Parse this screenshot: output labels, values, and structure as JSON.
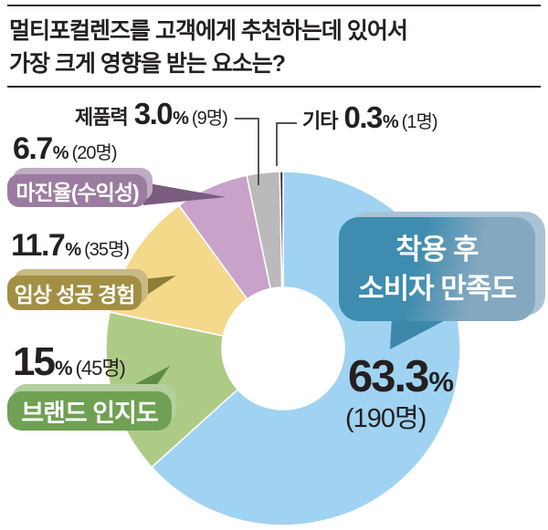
{
  "page": {
    "title_line1": "멀티포컬렌즈를 고객에게 추천하는데 있어서",
    "title_line2": "가장 크게 영향을 받는 요소는?"
  },
  "chart_data": {
    "type": "pie",
    "donut": true,
    "title": "멀티포컬렌즈를 고객에게 추천하는데 있어서 가장 크게 영향을 받는 요소는?",
    "start_angle_deg": 0,
    "direction": "clockwise",
    "unit": "%",
    "segments": [
      {
        "key": "satisfaction",
        "label": "착용 후 소비자 만족도",
        "percent": 63.3,
        "count": 190,
        "count_label": "(190명)",
        "color": "#9FD3F1"
      },
      {
        "key": "brand",
        "label": "브랜드 인지도",
        "percent": 15.0,
        "count": 45,
        "count_label": "(45명)",
        "color": "#AECB85"
      },
      {
        "key": "clinical",
        "label": "임상 성공 경험",
        "percent": 11.7,
        "count": 35,
        "count_label": "(35명)",
        "color": "#F4D98B"
      },
      {
        "key": "margin",
        "label": "마진율(수익성)",
        "percent": 6.7,
        "count": 20,
        "count_label": "(20명)",
        "color": "#C8A2C9"
      },
      {
        "key": "product",
        "label": "제품력",
        "percent": 3.0,
        "count": 9,
        "count_label": "(9명)",
        "color": "#BBB9BA"
      },
      {
        "key": "etc",
        "label": "기타",
        "percent": 0.3,
        "count": 1,
        "count_label": "(1명)",
        "color": "#332D30"
      }
    ]
  },
  "callouts": {
    "product": {
      "name": "제품력",
      "pct": "3.0",
      "unit": "%",
      "count": "(9명)"
    },
    "etc": {
      "name": "기타",
      "pct": "0.3",
      "unit": "%",
      "count": "(1명)"
    },
    "margin": {
      "pct": "6.7",
      "unit": "%",
      "count": "(20명)",
      "bubble": "마진율(수익성)",
      "colors": {
        "main": "#9B7CA0",
        "halo": "#BFABC3",
        "tail": "#7A5C7E"
      }
    },
    "clinical": {
      "pct": "11.7",
      "unit": "%",
      "count": "(35명)",
      "bubble": "임상 성공 경험",
      "colors": {
        "main": "#A28F45",
        "halo": "#C8BA85",
        "tail": "#8F7D36"
      }
    },
    "brand": {
      "pct": "15",
      "unit": "%",
      "count": "(45명)",
      "bubble": "브랜드 인지도",
      "colors": {
        "main": "#6FA053",
        "halo": "#B5CFA0",
        "tail": "#5E8C45"
      }
    },
    "satisfaction": {
      "bubble_line1": "착용 후",
      "bubble_line2": "소비자 만족도",
      "pct": "63.3",
      "unit": "%",
      "count": "(190명)",
      "colors": {
        "main": "#3E8CB0",
        "main2": "#83A8BF",
        "halo": "#A9C3D4",
        "tail": "#3D87AB"
      }
    }
  }
}
